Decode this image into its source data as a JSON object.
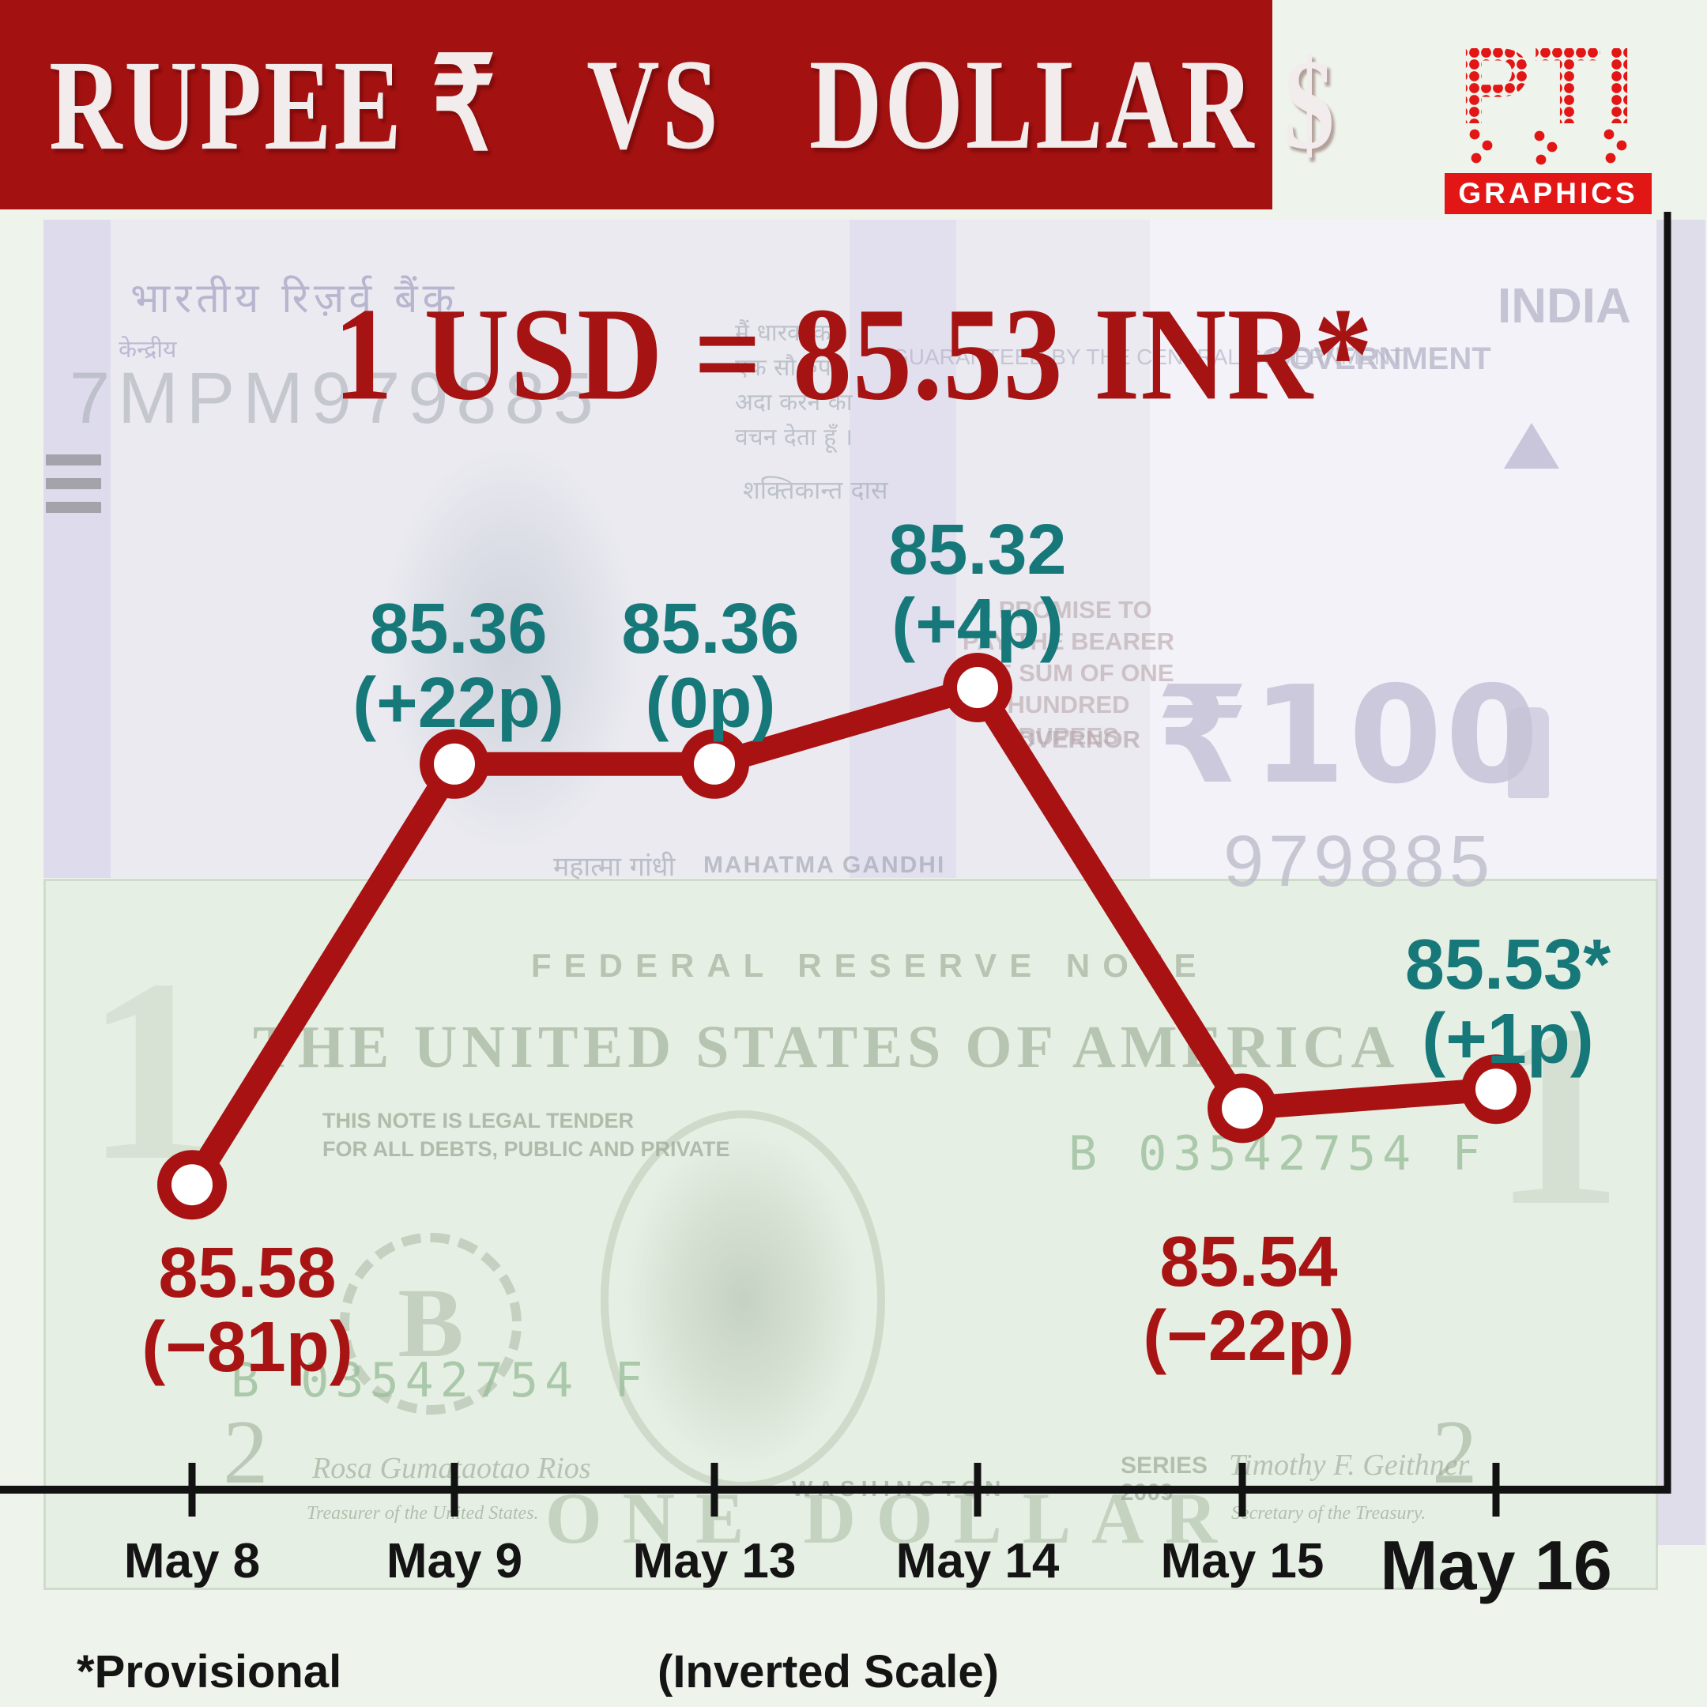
{
  "banner": {
    "title_left": "RUPEE ₹",
    "title_mid": "VS",
    "title_right": "DOLLAR $",
    "bg_color": "#a31111",
    "text_color": "#f2ecec"
  },
  "logo": {
    "brand": "PTI",
    "sub_label": "GRAPHICS",
    "color": "#e31616"
  },
  "headline": {
    "text": "1 USD = 85.53 INR*",
    "color": "#a51313"
  },
  "chart_data": {
    "type": "line",
    "title": "1 USD = 85.53 INR*",
    "categories": [
      "May 8",
      "May 9",
      "May 13",
      "May 14",
      "May 15",
      "May 16"
    ],
    "values": [
      85.58,
      85.36,
      85.36,
      85.32,
      85.54,
      85.53
    ],
    "points": [
      {
        "date": "May 8",
        "value": 85.58,
        "value_label": "85.58",
        "change_label": "(−81p)",
        "label_color": "red",
        "label_pos": "below"
      },
      {
        "date": "May 9",
        "value": 85.36,
        "value_label": "85.36",
        "change_label": "(+22p)",
        "label_color": "teal",
        "label_pos": "above"
      },
      {
        "date": "May 13",
        "value": 85.36,
        "value_label": "85.36",
        "change_label": "(0p)",
        "label_color": "teal",
        "label_pos": "above"
      },
      {
        "date": "May 14",
        "value": 85.32,
        "value_label": "85.32",
        "change_label": "(+4p)",
        "label_color": "teal",
        "label_pos": "above"
      },
      {
        "date": "May 15",
        "value": 85.54,
        "value_label": "85.54",
        "change_label": "(−22p)",
        "label_color": "red",
        "label_pos": "below"
      },
      {
        "date": "May 16",
        "value": 85.53,
        "value_label": "85.53*",
        "change_label": "(+1p)",
        "label_color": "teal",
        "label_pos": "above",
        "emphasis": true
      }
    ],
    "inverted_scale": true,
    "grid": false,
    "line_color": "#a81212",
    "marker_fill": "#ffffff",
    "axis_color": "#121212"
  },
  "footnotes": {
    "provisional": "*Provisional",
    "scale_note": "(Inverted Scale)"
  },
  "colors": {
    "teal": "#17787a",
    "label_red": "#a81414",
    "line_red": "#a81212",
    "banner_red": "#a31111",
    "logo_red": "#e31616",
    "page_bg": "#eef4ec"
  },
  "background": {
    "watermarks": {
      "rupee_note": {
        "hindi_bank": "भारतीय रिज़र्व बैंक",
        "hindi_central": "केन्द्रीय",
        "serial": "7MPM979885",
        "india": "INDIA",
        "government": "GOVERNMENT",
        "guaranteed": "GUARANTEED BY THE CENTRAL GOVERNMENT",
        "hindi_promise": "मैं धारक को\nएक सौ रुपये\nअदा करने का\nवचन देता हूँ ।",
        "hindi_governor_sig": "शक्तिकान्त दास",
        "promise": "I PROMISE TO\nPAY THE BEARER\nTHE SUM OF ONE\nHUNDRED RUPEES",
        "governor": "GOVERNOR",
        "denomination": "₹100",
        "serial_right": "979885",
        "gandhi_hindi": "महात्मा गांधी",
        "gandhi": "MAHATMA GANDHI"
      },
      "dollar_note": {
        "federal": "FEDERAL RESERVE NOTE",
        "usa": "THE UNITED STATES OF AMERICA",
        "legal_tender": "THIS NOTE IS LEGAL TENDER\nFOR ALL DEBTS, PUBLIC AND PRIVATE",
        "serial_a": "B 03542754 F",
        "serial_b": "B 03542754 F",
        "seal_letter": "B",
        "one_dollar": "ONE DOLLAR",
        "series": "SERIES\n2009",
        "washington": "WASHINGTON",
        "two_left": "2",
        "two_right": "2",
        "one_left": "1",
        "one_right": "1",
        "signature_left": "Rosa Gumataotao Rios",
        "signature_right": "Timothy F. Geithner",
        "treasurer": "Treasurer of the United States.",
        "secretary": "Secretary of the Treasury."
      }
    }
  }
}
